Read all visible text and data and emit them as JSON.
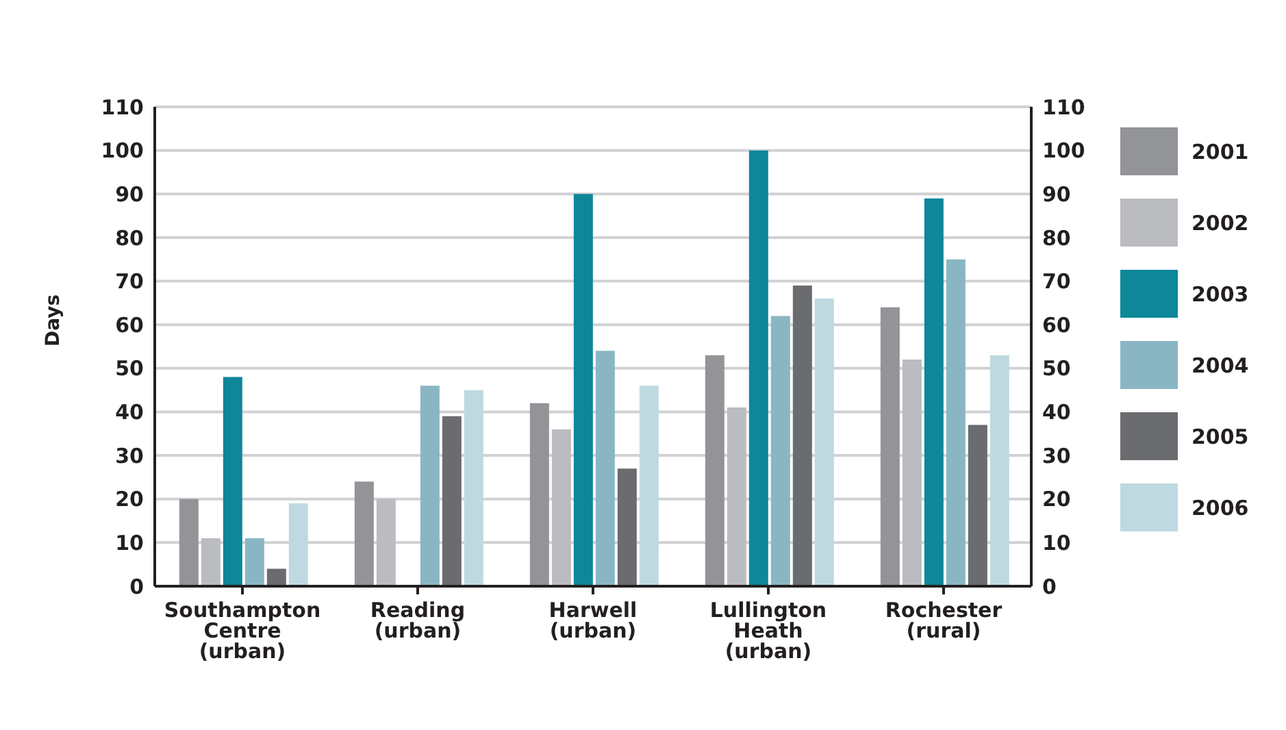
{
  "chart_data": {
    "type": "bar",
    "ylabel": "Days",
    "categories": [
      "Southampton Centre (urban)",
      "Reading (urban)",
      "Harwell (urban)",
      "Lullington Heath (urban)",
      "Rochester (rural)"
    ],
    "series": [
      {
        "name": "2001",
        "color": "#939498",
        "values": [
          20,
          24,
          42,
          53,
          64
        ]
      },
      {
        "name": "2002",
        "color": "#bbbcc0",
        "values": [
          11,
          20,
          36,
          41,
          52
        ]
      },
      {
        "name": "2003",
        "color": "#0e8799",
        "values": [
          48,
          null,
          90,
          100,
          89
        ]
      },
      {
        "name": "2004",
        "color": "#8ab6c4",
        "values": [
          11,
          46,
          54,
          62,
          75
        ]
      },
      {
        "name": "2005",
        "color": "#6b6c70",
        "values": [
          4,
          39,
          27,
          69,
          37
        ]
      },
      {
        "name": "2006",
        "color": "#bfd9e0",
        "values": [
          19,
          45,
          46,
          66,
          53
        ]
      }
    ],
    "ylim": [
      0,
      110
    ],
    "yticks": [
      0,
      10,
      20,
      30,
      40,
      50,
      60,
      70,
      80,
      90,
      100,
      110
    ],
    "y2lim": [
      0,
      110
    ],
    "y2ticks": [
      0,
      10,
      20,
      30,
      40,
      50,
      60,
      70,
      80,
      90,
      100,
      110
    ],
    "grid": "y",
    "legend": "right"
  }
}
